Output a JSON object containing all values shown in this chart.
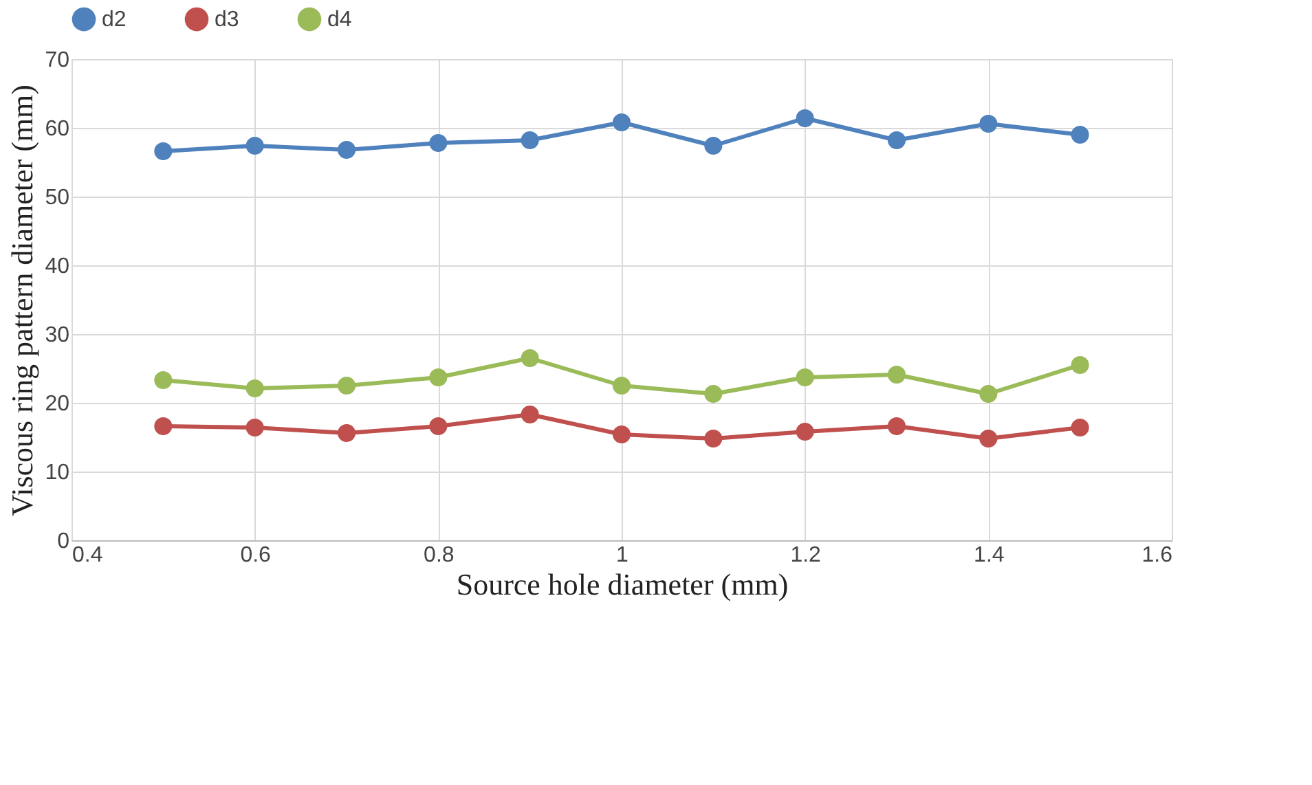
{
  "chart_data": {
    "type": "line",
    "xlabel": "Source hole diameter (mm)",
    "ylabel": "Viscous ring pattern  diameter (mm)",
    "x": [
      0.5,
      0.6,
      0.7,
      0.8,
      0.9,
      1.0,
      1.1,
      1.2,
      1.3,
      1.4,
      1.5
    ],
    "series": [
      {
        "name": "d2",
        "color": "#4f81bd",
        "values": [
          56.6,
          57.4,
          56.8,
          57.8,
          58.2,
          60.8,
          57.4,
          61.4,
          58.2,
          60.6,
          59.0
        ]
      },
      {
        "name": "d3",
        "color": "#c0504d",
        "values": [
          16.6,
          16.4,
          15.6,
          16.6,
          18.3,
          15.4,
          14.8,
          15.8,
          16.6,
          14.8,
          16.4
        ]
      },
      {
        "name": "d4",
        "color": "#9bbb59",
        "values": [
          23.3,
          22.1,
          22.5,
          23.7,
          26.5,
          22.5,
          21.3,
          23.7,
          24.1,
          21.3,
          25.5
        ]
      }
    ],
    "xlim": [
      0.4,
      1.6
    ],
    "xticks": [
      0.4,
      0.6,
      0.8,
      1,
      1.2,
      1.4,
      1.6
    ],
    "ylim": [
      0,
      70
    ],
    "yticks": [
      0,
      10,
      20,
      30,
      40,
      50,
      60,
      70
    ],
    "grid": true,
    "legend": "top",
    "marker": "circle",
    "line_style": "solid"
  }
}
